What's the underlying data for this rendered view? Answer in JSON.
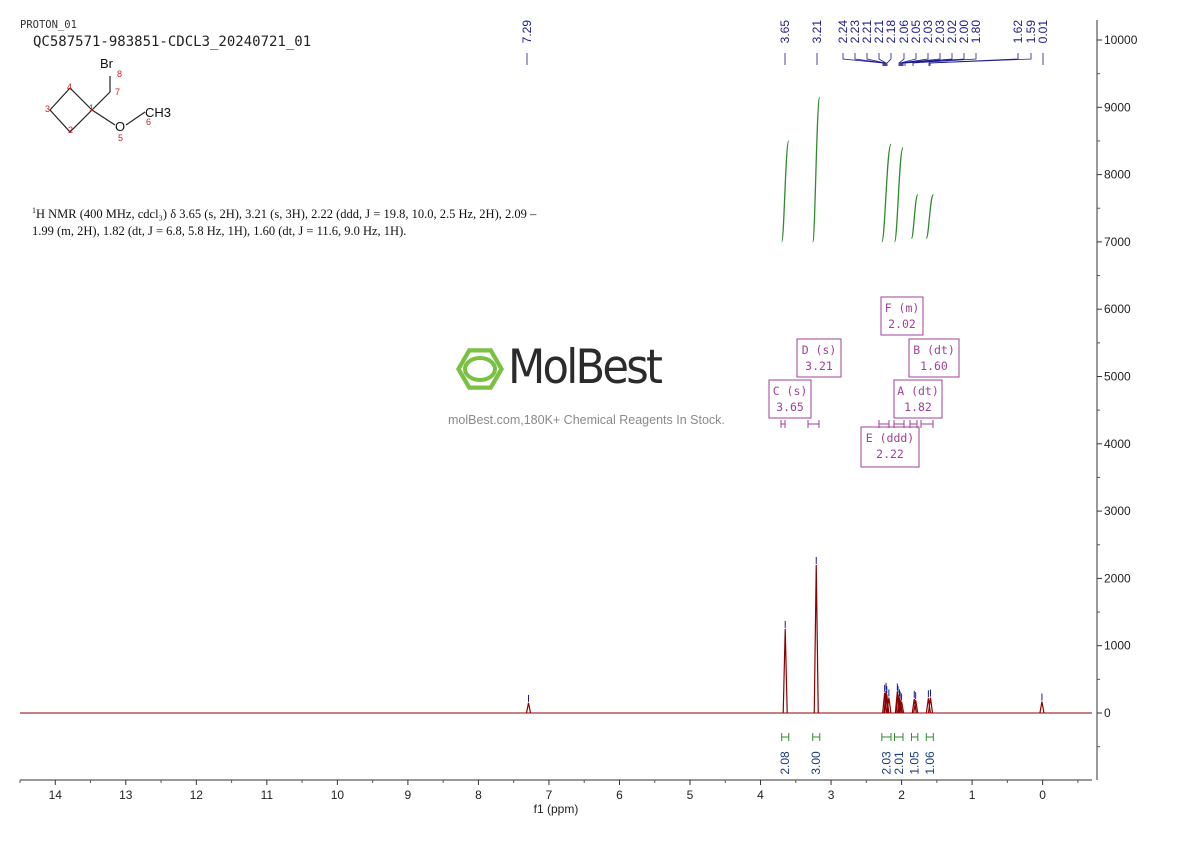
{
  "header": {
    "experiment": "PROTON_01",
    "sample": "QC587571-983851-CDCL3_20240721_01"
  },
  "structure": {
    "atoms": {
      "br": "Br",
      "o": "O",
      "ch3": "CH3"
    },
    "numbers": [
      "1",
      "2",
      "3",
      "4",
      "5",
      "6",
      "7",
      "8"
    ]
  },
  "description": {
    "line1_prefix": "1",
    "line1": "H NMR (400 MHz, cdcl₃) δ 3.65 (s, 2H), 3.21 (s, 3H), 2.22 (ddd, J = 19.8, 10.0, 2.5 Hz, 2H), 2.09 –",
    "line2": "1.99 (m, 2H), 1.82 (dt, J = 6.8, 5.8 Hz, 1H), 1.60 (dt, J = 11.6, 9.0 Hz, 1H)."
  },
  "watermark": {
    "name": "MolBest",
    "tagline": "molBest.com,180K+ Chemical Reagents In Stock."
  },
  "colors": {
    "spectrum": "#8b0000",
    "integral": "#2e8b2e",
    "peak_label": "#1a1a8c",
    "multiplet_box": "#a0409a",
    "integral_label": "#1a3d7a",
    "logo_green": "#7ac142"
  },
  "chart_data": {
    "type": "line",
    "xlabel": "f1 (ppm)",
    "xlim": [
      14.5,
      -0.7
    ],
    "ylim": [
      -1000,
      10200
    ],
    "x_ticks": [
      14,
      13,
      12,
      11,
      10,
      9,
      8,
      7,
      6,
      5,
      4,
      3,
      2,
      1,
      0
    ],
    "y_ticks": [
      0,
      1000,
      2000,
      3000,
      4000,
      5000,
      6000,
      7000,
      8000,
      9000,
      10000
    ],
    "peaks": [
      {
        "ppm": 7.29,
        "height": 150
      },
      {
        "ppm": 3.65,
        "height": 1250
      },
      {
        "ppm": 3.21,
        "height": 2200
      },
      {
        "ppm": 2.24,
        "height": 300
      },
      {
        "ppm": 2.22,
        "height": 330
      },
      {
        "ppm": 2.21,
        "height": 280
      },
      {
        "ppm": 2.18,
        "height": 230
      },
      {
        "ppm": 2.06,
        "height": 320
      },
      {
        "ppm": 2.05,
        "height": 280
      },
      {
        "ppm": 2.03,
        "height": 230
      },
      {
        "ppm": 2.02,
        "height": 200
      },
      {
        "ppm": 2.0,
        "height": 170
      },
      {
        "ppm": 1.82,
        "height": 210
      },
      {
        "ppm": 1.8,
        "height": 190
      },
      {
        "ppm": 1.62,
        "height": 220
      },
      {
        "ppm": 1.59,
        "height": 230
      },
      {
        "ppm": 0.01,
        "height": 170
      }
    ],
    "peak_labels": [
      "7.29",
      "3.65",
      "3.21",
      "2.24",
      "2.23",
      "2.21",
      "2.21",
      "2.18",
      "2.06",
      "2.05",
      "2.03",
      "2.03",
      "2.02",
      "2.00",
      "1.80",
      "1.62",
      "1.59",
      "0.01"
    ],
    "integrals": [
      {
        "from": 3.7,
        "to": 3.6,
        "value": "2.08",
        "y_start": 7000,
        "y_end": 8500
      },
      {
        "from": 3.26,
        "to": 3.16,
        "value": "3.00",
        "y_start": 7000,
        "y_end": 9150
      },
      {
        "from": 2.28,
        "to": 2.15,
        "value": "2.03",
        "y_start": 7000,
        "y_end": 8450
      },
      {
        "from": 2.1,
        "to": 1.98,
        "value": "2.01",
        "y_start": 7000,
        "y_end": 8400
      },
      {
        "from": 1.86,
        "to": 1.77,
        "value": "1.05",
        "y_start": 7050,
        "y_end": 7700
      },
      {
        "from": 1.65,
        "to": 1.55,
        "value": "1.06",
        "y_start": 7050,
        "y_end": 7700
      }
    ],
    "multiplets": [
      {
        "label": "C (s)",
        "shift": "3.65",
        "ppm": 3.65
      },
      {
        "label": "D (s)",
        "shift": "3.21",
        "ppm": 3.21
      },
      {
        "label": "F (m)",
        "shift": "2.02",
        "ppm": 2.02
      },
      {
        "label": "B (dt)",
        "shift": "1.60",
        "ppm": 1.6
      },
      {
        "label": "A (dt)",
        "shift": "1.82",
        "ppm": 1.82
      },
      {
        "label": "E (ddd)",
        "shift": "2.22",
        "ppm": 2.22
      }
    ]
  }
}
